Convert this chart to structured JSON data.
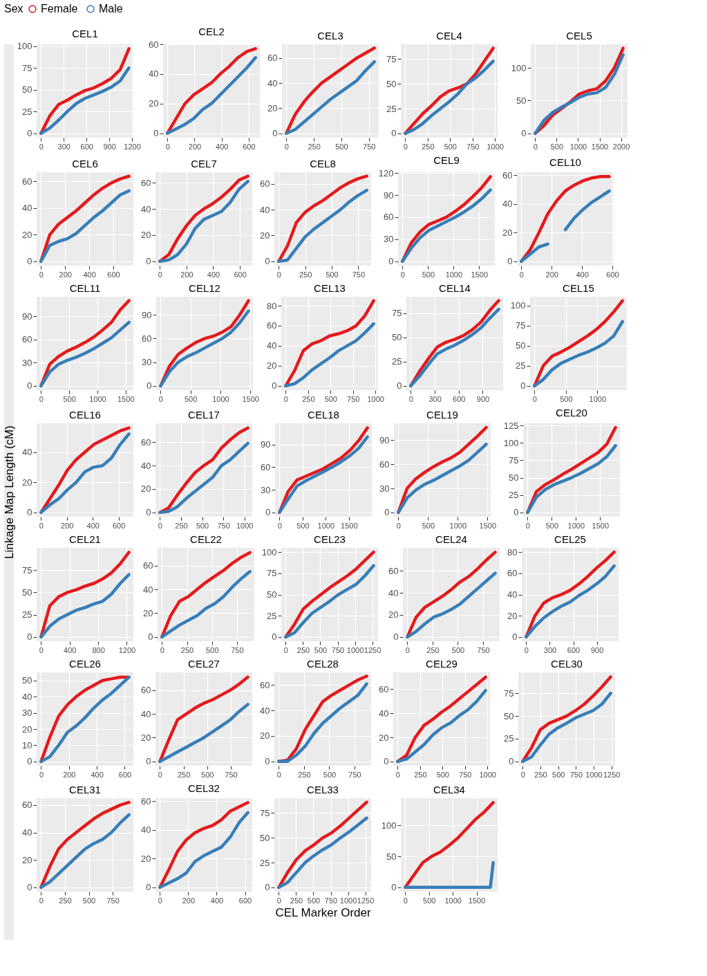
{
  "chart_data": [
    {
      "type": "line",
      "title": "CEL1",
      "legend": "top",
      "legend_title": "Sex",
      "grid": true,
      "xlim": [
        -58,
        1218
      ],
      "xticks": [
        0,
        300,
        600,
        900,
        1200
      ],
      "ylim": [
        -5,
        102
      ],
      "yticks": [
        0,
        25,
        50,
        75,
        100
      ],
      "x": [
        0,
        116,
        232,
        348,
        464,
        580,
        696,
        812,
        928,
        1044,
        1160
      ],
      "series": [
        {
          "name": "Female",
          "color": "#e41a1c",
          "values": [
            0,
            20,
            33,
            38,
            44,
            49,
            52,
            57,
            63,
            73,
            97
          ]
        },
        {
          "name": "Male",
          "color": "#377eb8",
          "values": [
            0,
            6,
            15,
            25,
            34,
            40,
            44,
            48,
            53,
            60,
            75
          ]
        }
      ]
    },
    {
      "type": "line",
      "title": "CEL2",
      "grid": true,
      "xlim": [
        -32,
        682
      ],
      "xticks": [
        0,
        200,
        400,
        600
      ],
      "ylim": [
        -3,
        60
      ],
      "yticks": [
        0,
        20,
        40,
        60
      ],
      "x": [
        0,
        65,
        130,
        195,
        260,
        325,
        390,
        455,
        520,
        585,
        650
      ],
      "series": [
        {
          "name": "Female",
          "color": "#e41a1c",
          "values": [
            0,
            10,
            20,
            26,
            30,
            34,
            40,
            45,
            51,
            55,
            57
          ]
        },
        {
          "name": "Male",
          "color": "#377eb8",
          "values": [
            0,
            3,
            6,
            10,
            16,
            20,
            26,
            32,
            38,
            44,
            51
          ]
        }
      ]
    },
    {
      "type": "line",
      "title": "CEL3",
      "grid": true,
      "xlim": [
        -40,
        840
      ],
      "xticks": [
        0,
        250,
        500,
        750
      ],
      "ylim": [
        -3.5,
        71
      ],
      "yticks": [
        0,
        20,
        40,
        60
      ],
      "x": [
        0,
        80,
        160,
        240,
        320,
        400,
        480,
        560,
        640,
        720,
        800
      ],
      "series": [
        {
          "name": "Female",
          "color": "#e41a1c",
          "values": [
            0,
            15,
            25,
            33,
            40,
            45,
            50,
            55,
            60,
            64,
            68
          ]
        },
        {
          "name": "Male",
          "color": "#377eb8",
          "values": [
            0,
            3,
            9,
            15,
            21,
            27,
            32,
            37,
            42,
            50,
            57
          ]
        }
      ]
    },
    {
      "type": "line",
      "title": "CEL4",
      "grid": true,
      "xlim": [
        -49,
        1029
      ],
      "xticks": [
        0,
        250,
        500,
        750,
        1000
      ],
      "ylim": [
        -4.3,
        90
      ],
      "yticks": [
        0,
        25,
        50,
        75
      ],
      "x": [
        0,
        98,
        196,
        294,
        392,
        490,
        588,
        686,
        784,
        882,
        980
      ],
      "series": [
        {
          "name": "Female",
          "color": "#e41a1c",
          "values": [
            0,
            10,
            20,
            28,
            37,
            43,
            46,
            50,
            60,
            73,
            86
          ]
        },
        {
          "name": "Male",
          "color": "#377eb8",
          "values": [
            0,
            4,
            10,
            18,
            25,
            32,
            40,
            50,
            56,
            64,
            73
          ]
        }
      ]
    },
    {
      "type": "line",
      "title": "CEL5",
      "grid": true,
      "xlim": [
        -102,
        2152
      ],
      "xticks": [
        0,
        500,
        1000,
        1500,
        2000
      ],
      "ylim": [
        -6.5,
        136
      ],
      "yticks": [
        0,
        50,
        100
      ],
      "x": [
        0,
        205,
        410,
        615,
        820,
        1025,
        1230,
        1435,
        1640,
        1845,
        2050
      ],
      "series": [
        {
          "name": "Female",
          "color": "#e41a1c",
          "values": [
            0,
            12,
            28,
            38,
            48,
            60,
            65,
            68,
            80,
            100,
            130
          ]
        },
        {
          "name": "Male",
          "color": "#377eb8",
          "values": [
            0,
            20,
            32,
            40,
            47,
            55,
            60,
            62,
            70,
            90,
            120
          ]
        }
      ]
    },
    {
      "type": "line",
      "title": "CEL6",
      "grid": true,
      "xlim": [
        -36,
        766
      ],
      "xticks": [
        0,
        200,
        400,
        600
      ],
      "ylim": [
        -3.2,
        67
      ],
      "yticks": [
        0,
        20,
        40,
        60
      ],
      "x": [
        0,
        73,
        146,
        219,
        292,
        365,
        438,
        511,
        584,
        657,
        730
      ],
      "series": [
        {
          "name": "Female",
          "color": "#e41a1c",
          "values": [
            0,
            20,
            28,
            33,
            38,
            44,
            50,
            55,
            59,
            62,
            64
          ]
        },
        {
          "name": "Male",
          "color": "#377eb8",
          "values": [
            0,
            12,
            15,
            17,
            21,
            27,
            33,
            38,
            44,
            50,
            53
          ]
        }
      ]
    },
    {
      "type": "line",
      "title": "CEL7",
      "grid": true,
      "xlim": [
        -33,
        693
      ],
      "xticks": [
        0,
        200,
        400,
        600
      ],
      "ylim": [
        -3.3,
        68
      ],
      "yticks": [
        0,
        20,
        40,
        60
      ],
      "x": [
        0,
        66,
        132,
        198,
        264,
        330,
        396,
        462,
        528,
        594,
        660
      ],
      "series": [
        {
          "name": "Female",
          "color": "#e41a1c",
          "values": [
            0,
            5,
            17,
            27,
            35,
            40,
            44,
            49,
            55,
            62,
            65
          ]
        },
        {
          "name": "Male",
          "color": "#377eb8",
          "values": [
            0,
            1,
            5,
            13,
            25,
            32,
            35,
            38,
            45,
            55,
            61
          ]
        }
      ]
    },
    {
      "type": "line",
      "title": "CEL8",
      "grid": true,
      "xlim": [
        -41,
        871
      ],
      "xticks": [
        0,
        250,
        500,
        750
      ],
      "ylim": [
        -3.3,
        69
      ],
      "yticks": [
        0,
        20,
        40,
        60
      ],
      "x": [
        0,
        83,
        166,
        249,
        332,
        415,
        498,
        581,
        664,
        747,
        830
      ],
      "series": [
        {
          "name": "Female",
          "color": "#e41a1c",
          "values": [
            0,
            12,
            30,
            38,
            43,
            47,
            52,
            57,
            61,
            64,
            66
          ]
        },
        {
          "name": "Male",
          "color": "#377eb8",
          "values": [
            0,
            1,
            10,
            19,
            25,
            30,
            35,
            40,
            46,
            51,
            55
          ]
        }
      ]
    },
    {
      "type": "line",
      "title": "CEL9",
      "grid": true,
      "xlim": [
        -86,
        1806
      ],
      "xticks": [
        0,
        500,
        1000,
        1500
      ],
      "ylim": [
        -5.8,
        121
      ],
      "yticks": [
        0,
        30,
        60,
        90,
        120
      ],
      "x": [
        0,
        172,
        344,
        516,
        688,
        860,
        1032,
        1204,
        1376,
        1548,
        1720
      ],
      "series": [
        {
          "name": "Female",
          "color": "#e41a1c",
          "values": [
            0,
            25,
            40,
            50,
            55,
            60,
            68,
            77,
            88,
            100,
            115
          ]
        },
        {
          "name": "Male",
          "color": "#377eb8",
          "values": [
            0,
            18,
            32,
            42,
            48,
            54,
            60,
            67,
            75,
            85,
            97
          ]
        }
      ]
    },
    {
      "type": "line",
      "title": "CEL10",
      "grid": true,
      "xlim": [
        -29,
        609
      ],
      "xticks": [
        0,
        200,
        400,
        600
      ],
      "ylim": [
        -3,
        62
      ],
      "yticks": [
        0,
        20,
        40,
        60
      ],
      "x": [
        0,
        58,
        116,
        174,
        232,
        290,
        348,
        406,
        464,
        522,
        580
      ],
      "series": [
        {
          "name": "Female",
          "color": "#e41a1c",
          "values": [
            0,
            8,
            20,
            33,
            42,
            49,
            53,
            56,
            58,
            59,
            59
          ]
        },
        {
          "name": "Male",
          "color": "#377eb8",
          "values": [
            0,
            5,
            10,
            12,
            null,
            22,
            30,
            36,
            41,
            45,
            49
          ]
        }
      ]
    },
    {
      "type": "line",
      "title": "CEL11",
      "grid": true,
      "xlim": [
        -78,
        1638
      ],
      "xticks": [
        0,
        500,
        1000,
        1500
      ],
      "ylim": [
        -5.5,
        115
      ],
      "yticks": [
        0,
        30,
        60,
        90
      ],
      "x": [
        0,
        156,
        312,
        468,
        624,
        780,
        936,
        1092,
        1248,
        1404,
        1560
      ],
      "series": [
        {
          "name": "Female",
          "color": "#e41a1c",
          "values": [
            0,
            28,
            38,
            45,
            50,
            56,
            63,
            72,
            82,
            98,
            110
          ]
        },
        {
          "name": "Male",
          "color": "#377eb8",
          "values": [
            0,
            18,
            28,
            33,
            37,
            42,
            48,
            55,
            62,
            72,
            82
          ]
        }
      ]
    },
    {
      "type": "line",
      "title": "CEL12",
      "grid": true,
      "xlim": [
        -74,
        1544
      ],
      "xticks": [
        0,
        500,
        1000,
        1500
      ],
      "ylim": [
        -5.4,
        113
      ],
      "yticks": [
        0,
        30,
        60,
        90
      ],
      "x": [
        0,
        147,
        294,
        441,
        588,
        735,
        882,
        1029,
        1176,
        1323,
        1470
      ],
      "series": [
        {
          "name": "Female",
          "color": "#e41a1c",
          "values": [
            0,
            25,
            40,
            48,
            55,
            60,
            63,
            68,
            75,
            90,
            108
          ]
        },
        {
          "name": "Male",
          "color": "#377eb8",
          "values": [
            0,
            18,
            30,
            37,
            42,
            48,
            54,
            60,
            68,
            80,
            95
          ]
        }
      ]
    },
    {
      "type": "line",
      "title": "CEL13",
      "grid": true,
      "xlim": [
        -49,
        1029
      ],
      "xticks": [
        0,
        250,
        500,
        750,
        1000
      ],
      "ylim": [
        -4.3,
        89
      ],
      "yticks": [
        0,
        20,
        40,
        60,
        80
      ],
      "x": [
        0,
        98,
        196,
        294,
        392,
        490,
        588,
        686,
        784,
        882,
        980
      ],
      "series": [
        {
          "name": "Female",
          "color": "#e41a1c",
          "values": [
            0,
            15,
            35,
            42,
            45,
            50,
            52,
            55,
            60,
            70,
            85
          ]
        },
        {
          "name": "Male",
          "color": "#377eb8",
          "values": [
            0,
            2,
            8,
            16,
            22,
            28,
            35,
            40,
            45,
            53,
            62
          ]
        }
      ]
    },
    {
      "type": "line",
      "title": "CEL14",
      "grid": true,
      "xlim": [
        -55,
        1155
      ],
      "xticks": [
        0,
        300,
        600,
        900
      ],
      "ylim": [
        -4.4,
        92
      ],
      "yticks": [
        0,
        25,
        50,
        75
      ],
      "x": [
        0,
        110,
        220,
        330,
        440,
        550,
        660,
        770,
        880,
        990,
        1100
      ],
      "series": [
        {
          "name": "Female",
          "color": "#e41a1c",
          "values": [
            0,
            15,
            28,
            40,
            45,
            48,
            52,
            58,
            66,
            78,
            88
          ]
        },
        {
          "name": "Male",
          "color": "#377eb8",
          "values": [
            0,
            10,
            22,
            33,
            38,
            42,
            47,
            53,
            60,
            70,
            79
          ]
        }
      ]
    },
    {
      "type": "line",
      "title": "CEL15",
      "grid": true,
      "xlim": [
        -70,
        1470
      ],
      "xticks": [
        0,
        500,
        1000
      ],
      "ylim": [
        -5.3,
        111
      ],
      "yticks": [
        0,
        25,
        50,
        75,
        100
      ],
      "x": [
        0,
        140,
        280,
        420,
        560,
        700,
        840,
        980,
        1120,
        1260,
        1400
      ],
      "series": [
        {
          "name": "Female",
          "color": "#e41a1c",
          "values": [
            0,
            25,
            37,
            42,
            48,
            55,
            62,
            70,
            80,
            92,
            106
          ]
        },
        {
          "name": "Male",
          "color": "#377eb8",
          "values": [
            0,
            8,
            20,
            28,
            33,
            38,
            42,
            47,
            53,
            62,
            80
          ]
        }
      ]
    },
    {
      "type": "line",
      "title": "CEL16",
      "ylabel": "Linkage Map Length (cM)",
      "grid": true,
      "xlim": [
        -34,
        714
      ],
      "xticks": [
        0,
        200,
        400,
        600
      ],
      "ylim": [
        -2.8,
        59
      ],
      "yticks": [
        0,
        20,
        40
      ],
      "x": [
        0,
        68,
        136,
        204,
        272,
        340,
        408,
        476,
        544,
        612,
        680
      ],
      "series": [
        {
          "name": "Female",
          "color": "#e41a1c",
          "values": [
            0,
            9,
            18,
            28,
            35,
            40,
            45,
            48,
            51,
            54,
            56
          ]
        },
        {
          "name": "Male",
          "color": "#377eb8",
          "values": [
            0,
            5,
            9,
            15,
            20,
            27,
            30,
            31,
            36,
            45,
            52
          ]
        }
      ]
    },
    {
      "type": "line",
      "title": "CEL17",
      "grid": true,
      "xlim": [
        -52,
        1092
      ],
      "xticks": [
        0,
        250,
        500,
        750,
        1000
      ],
      "ylim": [
        -3.6,
        76
      ],
      "yticks": [
        0,
        20,
        40,
        60
      ],
      "x": [
        0,
        104,
        208,
        312,
        416,
        520,
        624,
        728,
        832,
        936,
        1040
      ],
      "series": [
        {
          "name": "Female",
          "color": "#e41a1c",
          "values": [
            0,
            4,
            15,
            25,
            34,
            40,
            45,
            55,
            62,
            68,
            72
          ]
        },
        {
          "name": "Male",
          "color": "#377eb8",
          "values": [
            0,
            1,
            5,
            12,
            18,
            24,
            30,
            40,
            45,
            52,
            59
          ]
        }
      ]
    },
    {
      "type": "line",
      "title": "CEL18",
      "grid": true,
      "xlim": [
        -95,
        1995
      ],
      "xticks": [
        0,
        500,
        1000,
        1500
      ],
      "ylim": [
        -5.6,
        118
      ],
      "yticks": [
        0,
        30,
        60,
        90
      ],
      "x": [
        0,
        190,
        380,
        570,
        760,
        950,
        1140,
        1330,
        1520,
        1710,
        1900
      ],
      "series": [
        {
          "name": "Female",
          "color": "#e41a1c",
          "values": [
            0,
            28,
            43,
            48,
            53,
            58,
            65,
            72,
            82,
            95,
            112
          ]
        },
        {
          "name": "Male",
          "color": "#377eb8",
          "values": [
            0,
            18,
            35,
            42,
            48,
            54,
            60,
            67,
            75,
            85,
            100
          ]
        }
      ]
    },
    {
      "type": "line",
      "title": "CEL19",
      "grid": true,
      "xlim": [
        -74,
        1554
      ],
      "xticks": [
        0,
        500,
        1000,
        1500
      ],
      "ylim": [
        -5.3,
        111
      ],
      "yticks": [
        0,
        30,
        60,
        90
      ],
      "x": [
        0,
        148,
        296,
        444,
        592,
        740,
        888,
        1036,
        1184,
        1332,
        1480
      ],
      "series": [
        {
          "name": "Female",
          "color": "#e41a1c",
          "values": [
            0,
            30,
            42,
            50,
            57,
            63,
            68,
            75,
            85,
            95,
            106
          ]
        },
        {
          "name": "Male",
          "color": "#377eb8",
          "values": [
            0,
            18,
            28,
            35,
            40,
            46,
            52,
            58,
            65,
            75,
            85
          ]
        }
      ]
    },
    {
      "type": "line",
      "title": "CEL20",
      "grid": true,
      "xlim": [
        -91,
        1911
      ],
      "xticks": [
        0,
        500,
        1000,
        1500
      ],
      "ylim": [
        -6,
        128
      ],
      "yticks": [
        0,
        25,
        50,
        75,
        100,
        125
      ],
      "x": [
        0,
        182,
        364,
        546,
        728,
        910,
        1092,
        1274,
        1456,
        1638,
        1820
      ],
      "series": [
        {
          "name": "Female",
          "color": "#e41a1c",
          "values": [
            0,
            30,
            40,
            47,
            55,
            62,
            70,
            78,
            86,
            98,
            122
          ]
        },
        {
          "name": "Male",
          "color": "#377eb8",
          "values": [
            0,
            22,
            33,
            40,
            45,
            50,
            56,
            63,
            70,
            80,
            96
          ]
        }
      ]
    },
    {
      "type": "line",
      "title": "CEL21",
      "grid": true,
      "xlim": [
        -62,
        1292
      ],
      "xticks": [
        0,
        400,
        800,
        1200
      ],
      "ylim": [
        -4.8,
        100
      ],
      "yticks": [
        0,
        25,
        50,
        75
      ],
      "x": [
        0,
        123,
        246,
        369,
        492,
        615,
        738,
        861,
        984,
        1107,
        1230
      ],
      "series": [
        {
          "name": "Female",
          "color": "#e41a1c",
          "values": [
            0,
            35,
            45,
            50,
            53,
            57,
            60,
            65,
            72,
            82,
            95
          ]
        },
        {
          "name": "Male",
          "color": "#377eb8",
          "values": [
            0,
            12,
            20,
            25,
            30,
            33,
            37,
            40,
            48,
            60,
            70
          ]
        }
      ]
    },
    {
      "type": "line",
      "title": "CEL22",
      "grid": true,
      "xlim": [
        -44,
        924
      ],
      "xticks": [
        0,
        250,
        500,
        750
      ],
      "ylim": [
        -3.6,
        75
      ],
      "yticks": [
        0,
        20,
        40,
        60
      ],
      "x": [
        0,
        88,
        176,
        264,
        352,
        440,
        528,
        616,
        704,
        792,
        880
      ],
      "series": [
        {
          "name": "Female",
          "color": "#e41a1c",
          "values": [
            0,
            18,
            30,
            34,
            40,
            46,
            51,
            56,
            62,
            67,
            71
          ]
        },
        {
          "name": "Male",
          "color": "#377eb8",
          "values": [
            0,
            5,
            10,
            14,
            18,
            24,
            28,
            34,
            42,
            49,
            55
          ]
        }
      ]
    },
    {
      "type": "line",
      "title": "CEL23",
      "grid": true,
      "xlim": [
        -64,
        1334
      ],
      "xticks": [
        0,
        250,
        500,
        750,
        1000,
        1250
      ],
      "ylim": [
        -5,
        105
      ],
      "yticks": [
        0,
        25,
        50,
        75,
        100
      ],
      "x": [
        0,
        127,
        254,
        381,
        508,
        635,
        762,
        889,
        1016,
        1143,
        1270
      ],
      "series": [
        {
          "name": "Female",
          "color": "#e41a1c",
          "values": [
            0,
            15,
            33,
            42,
            50,
            58,
            65,
            72,
            80,
            90,
            100
          ]
        },
        {
          "name": "Male",
          "color": "#377eb8",
          "values": [
            0,
            5,
            17,
            28,
            35,
            42,
            50,
            56,
            62,
            72,
            84
          ]
        }
      ]
    },
    {
      "type": "line",
      "title": "CEL24",
      "grid": true,
      "xlim": [
        -44,
        914
      ],
      "xticks": [
        0,
        250,
        500,
        750
      ],
      "ylim": [
        -3.9,
        81
      ],
      "yticks": [
        0,
        20,
        40,
        60
      ],
      "x": [
        0,
        87,
        174,
        261,
        348,
        435,
        522,
        609,
        696,
        783,
        870
      ],
      "series": [
        {
          "name": "Female",
          "color": "#e41a1c",
          "values": [
            0,
            18,
            27,
            32,
            37,
            43,
            50,
            55,
            62,
            70,
            77
          ]
        },
        {
          "name": "Male",
          "color": "#377eb8",
          "values": [
            0,
            5,
            12,
            18,
            21,
            25,
            30,
            37,
            44,
            51,
            58
          ]
        }
      ]
    },
    {
      "type": "line",
      "title": "CEL25",
      "grid": true,
      "xlim": [
        -56,
        1176
      ],
      "xticks": [
        0,
        300,
        600,
        900
      ],
      "ylim": [
        -4,
        84
      ],
      "yticks": [
        0,
        20,
        40,
        60,
        80
      ],
      "x": [
        0,
        112,
        224,
        336,
        448,
        560,
        672,
        784,
        896,
        1008,
        1120
      ],
      "series": [
        {
          "name": "Female",
          "color": "#e41a1c",
          "values": [
            0,
            20,
            32,
            37,
            40,
            44,
            50,
            57,
            65,
            72,
            80
          ]
        },
        {
          "name": "Male",
          "color": "#377eb8",
          "values": [
            0,
            10,
            18,
            24,
            29,
            33,
            39,
            44,
            50,
            57,
            67
          ]
        }
      ]
    },
    {
      "type": "line",
      "title": "CEL26",
      "grid": true,
      "xlim": [
        -32,
        662
      ],
      "xticks": [
        0,
        200,
        400,
        600
      ],
      "ylim": [
        -2.6,
        55
      ],
      "yticks": [
        0,
        10,
        20,
        30,
        40,
        50
      ],
      "x": [
        0,
        63,
        126,
        189,
        252,
        315,
        378,
        441,
        504,
        567,
        630
      ],
      "series": [
        {
          "name": "Female",
          "color": "#e41a1c",
          "values": [
            0,
            15,
            28,
            35,
            40,
            44,
            47,
            50,
            51,
            52,
            52
          ]
        },
        {
          "name": "Male",
          "color": "#377eb8",
          "values": [
            0,
            3,
            10,
            18,
            22,
            27,
            33,
            38,
            42,
            47,
            52
          ]
        }
      ]
    },
    {
      "type": "line",
      "title": "CEL27",
      "grid": true,
      "xlim": [
        -47,
        977
      ],
      "xticks": [
        0,
        250,
        500,
        750
      ],
      "ylim": [
        -3.6,
        75
      ],
      "yticks": [
        0,
        20,
        40,
        60
      ],
      "x": [
        0,
        93,
        186,
        279,
        372,
        465,
        558,
        651,
        744,
        837,
        930
      ],
      "series": [
        {
          "name": "Female",
          "color": "#e41a1c",
          "values": [
            0,
            18,
            35,
            40,
            45,
            49,
            52,
            56,
            60,
            65,
            71
          ]
        },
        {
          "name": "Male",
          "color": "#377eb8",
          "values": [
            0,
            4,
            8,
            12,
            16,
            20,
            25,
            30,
            35,
            42,
            48
          ]
        }
      ]
    },
    {
      "type": "line",
      "title": "CEL28",
      "grid": true,
      "xlim": [
        -44,
        914
      ],
      "xticks": [
        0,
        250,
        500,
        750
      ],
      "ylim": [
        -3.4,
        70
      ],
      "yticks": [
        0,
        20,
        40,
        60
      ],
      "x": [
        0,
        87,
        174,
        261,
        348,
        435,
        522,
        609,
        696,
        783,
        870
      ],
      "series": [
        {
          "name": "Female",
          "color": "#e41a1c",
          "values": [
            0,
            1,
            10,
            25,
            36,
            47,
            52,
            56,
            60,
            64,
            67
          ]
        },
        {
          "name": "Male",
          "color": "#377eb8",
          "values": [
            0,
            0,
            5,
            12,
            22,
            30,
            36,
            42,
            47,
            52,
            61
          ]
        }
      ]
    },
    {
      "type": "line",
      "title": "CEL29",
      "grid": true,
      "xlim": [
        -49,
        1029
      ],
      "xticks": [
        0,
        250,
        500,
        750,
        1000
      ],
      "ylim": [
        -3.5,
        74
      ],
      "yticks": [
        0,
        20,
        40,
        60
      ],
      "x": [
        0,
        98,
        196,
        294,
        392,
        490,
        588,
        686,
        784,
        882,
        980
      ],
      "series": [
        {
          "name": "Female",
          "color": "#e41a1c",
          "values": [
            0,
            5,
            20,
            30,
            35,
            41,
            46,
            52,
            58,
            64,
            70
          ]
        },
        {
          "name": "Male",
          "color": "#377eb8",
          "values": [
            0,
            2,
            8,
            14,
            22,
            28,
            32,
            38,
            43,
            50,
            59
          ]
        }
      ]
    },
    {
      "type": "line",
      "title": "CEL30",
      "grid": true,
      "xlim": [
        -62,
        1302
      ],
      "xticks": [
        0,
        250,
        500,
        750,
        1000,
        1250
      ],
      "ylim": [
        -4.7,
        98
      ],
      "yticks": [
        0,
        25,
        50,
        75
      ],
      "x": [
        0,
        124,
        248,
        372,
        496,
        620,
        744,
        868,
        992,
        1116,
        1240
      ],
      "series": [
        {
          "name": "Female",
          "color": "#e41a1c",
          "values": [
            0,
            15,
            35,
            42,
            46,
            50,
            56,
            63,
            72,
            82,
            93
          ]
        },
        {
          "name": "Male",
          "color": "#377eb8",
          "values": [
            0,
            5,
            18,
            30,
            37,
            42,
            48,
            52,
            56,
            63,
            75
          ]
        }
      ]
    },
    {
      "type": "line",
      "title": "CEL31",
      "grid": true,
      "xlim": [
        -46,
        966
      ],
      "xticks": [
        0,
        250,
        500,
        750
      ],
      "ylim": [
        -3.1,
        65
      ],
      "yticks": [
        0,
        20,
        40,
        60
      ],
      "x": [
        0,
        92,
        184,
        276,
        368,
        460,
        552,
        644,
        736,
        828,
        920
      ],
      "series": [
        {
          "name": "Female",
          "color": "#e41a1c",
          "values": [
            0,
            15,
            28,
            35,
            40,
            45,
            50,
            54,
            57,
            60,
            62
          ]
        },
        {
          "name": "Male",
          "color": "#377eb8",
          "values": [
            0,
            4,
            10,
            16,
            22,
            28,
            32,
            35,
            40,
            47,
            53
          ]
        }
      ]
    },
    {
      "type": "line",
      "title": "CEL32",
      "grid": true,
      "xlim": [
        -31,
        651
      ],
      "xticks": [
        0,
        200,
        400,
        600
      ],
      "ylim": [
        -3,
        62
      ],
      "yticks": [
        0,
        20,
        40,
        60
      ],
      "x": [
        0,
        62,
        124,
        186,
        248,
        310,
        372,
        434,
        496,
        558,
        620
      ],
      "series": [
        {
          "name": "Female",
          "color": "#e41a1c",
          "values": [
            0,
            12,
            25,
            33,
            38,
            41,
            43,
            47,
            53,
            56,
            59
          ]
        },
        {
          "name": "Male",
          "color": "#377eb8",
          "values": [
            0,
            3,
            6,
            10,
            18,
            22,
            25,
            28,
            35,
            45,
            52
          ]
        }
      ]
    },
    {
      "type": "line",
      "title": "CEL33",
      "xlabel": "CEL Marker Order",
      "grid": true,
      "xlim": [
        -64,
        1334
      ],
      "xticks": [
        0,
        250,
        500,
        750,
        1000,
        1250
      ],
      "ylim": [
        -4.3,
        90
      ],
      "yticks": [
        0,
        25,
        50,
        75
      ],
      "x": [
        0,
        127,
        254,
        381,
        508,
        635,
        762,
        889,
        1016,
        1143,
        1270
      ],
      "series": [
        {
          "name": "Female",
          "color": "#e41a1c",
          "values": [
            0,
            15,
            28,
            37,
            43,
            50,
            55,
            62,
            70,
            78,
            86
          ]
        },
        {
          "name": "Male",
          "color": "#377eb8",
          "values": [
            0,
            5,
            15,
            25,
            32,
            38,
            43,
            50,
            56,
            63,
            70
          ]
        }
      ]
    },
    {
      "type": "line",
      "title": "CEL34",
      "grid": true,
      "xlim": [
        -92,
        1942
      ],
      "xticks": [
        0,
        500,
        1000,
        1500
      ],
      "ylim": [
        -7,
        144
      ],
      "yticks": [
        0,
        50,
        100
      ],
      "x": [
        0,
        185,
        370,
        555,
        740,
        925,
        1110,
        1295,
        1480,
        1665,
        1850
      ],
      "series": [
        {
          "name": "Female",
          "color": "#e41a1c",
          "values": [
            0,
            20,
            40,
            50,
            57,
            68,
            80,
            95,
            110,
            122,
            137
          ]
        },
        {
          "name": "Male",
          "color": "#377eb8",
          "x": [
            0,
            900,
            1790,
            1850
          ],
          "values": [
            0,
            0,
            0,
            40
          ]
        }
      ]
    }
  ]
}
